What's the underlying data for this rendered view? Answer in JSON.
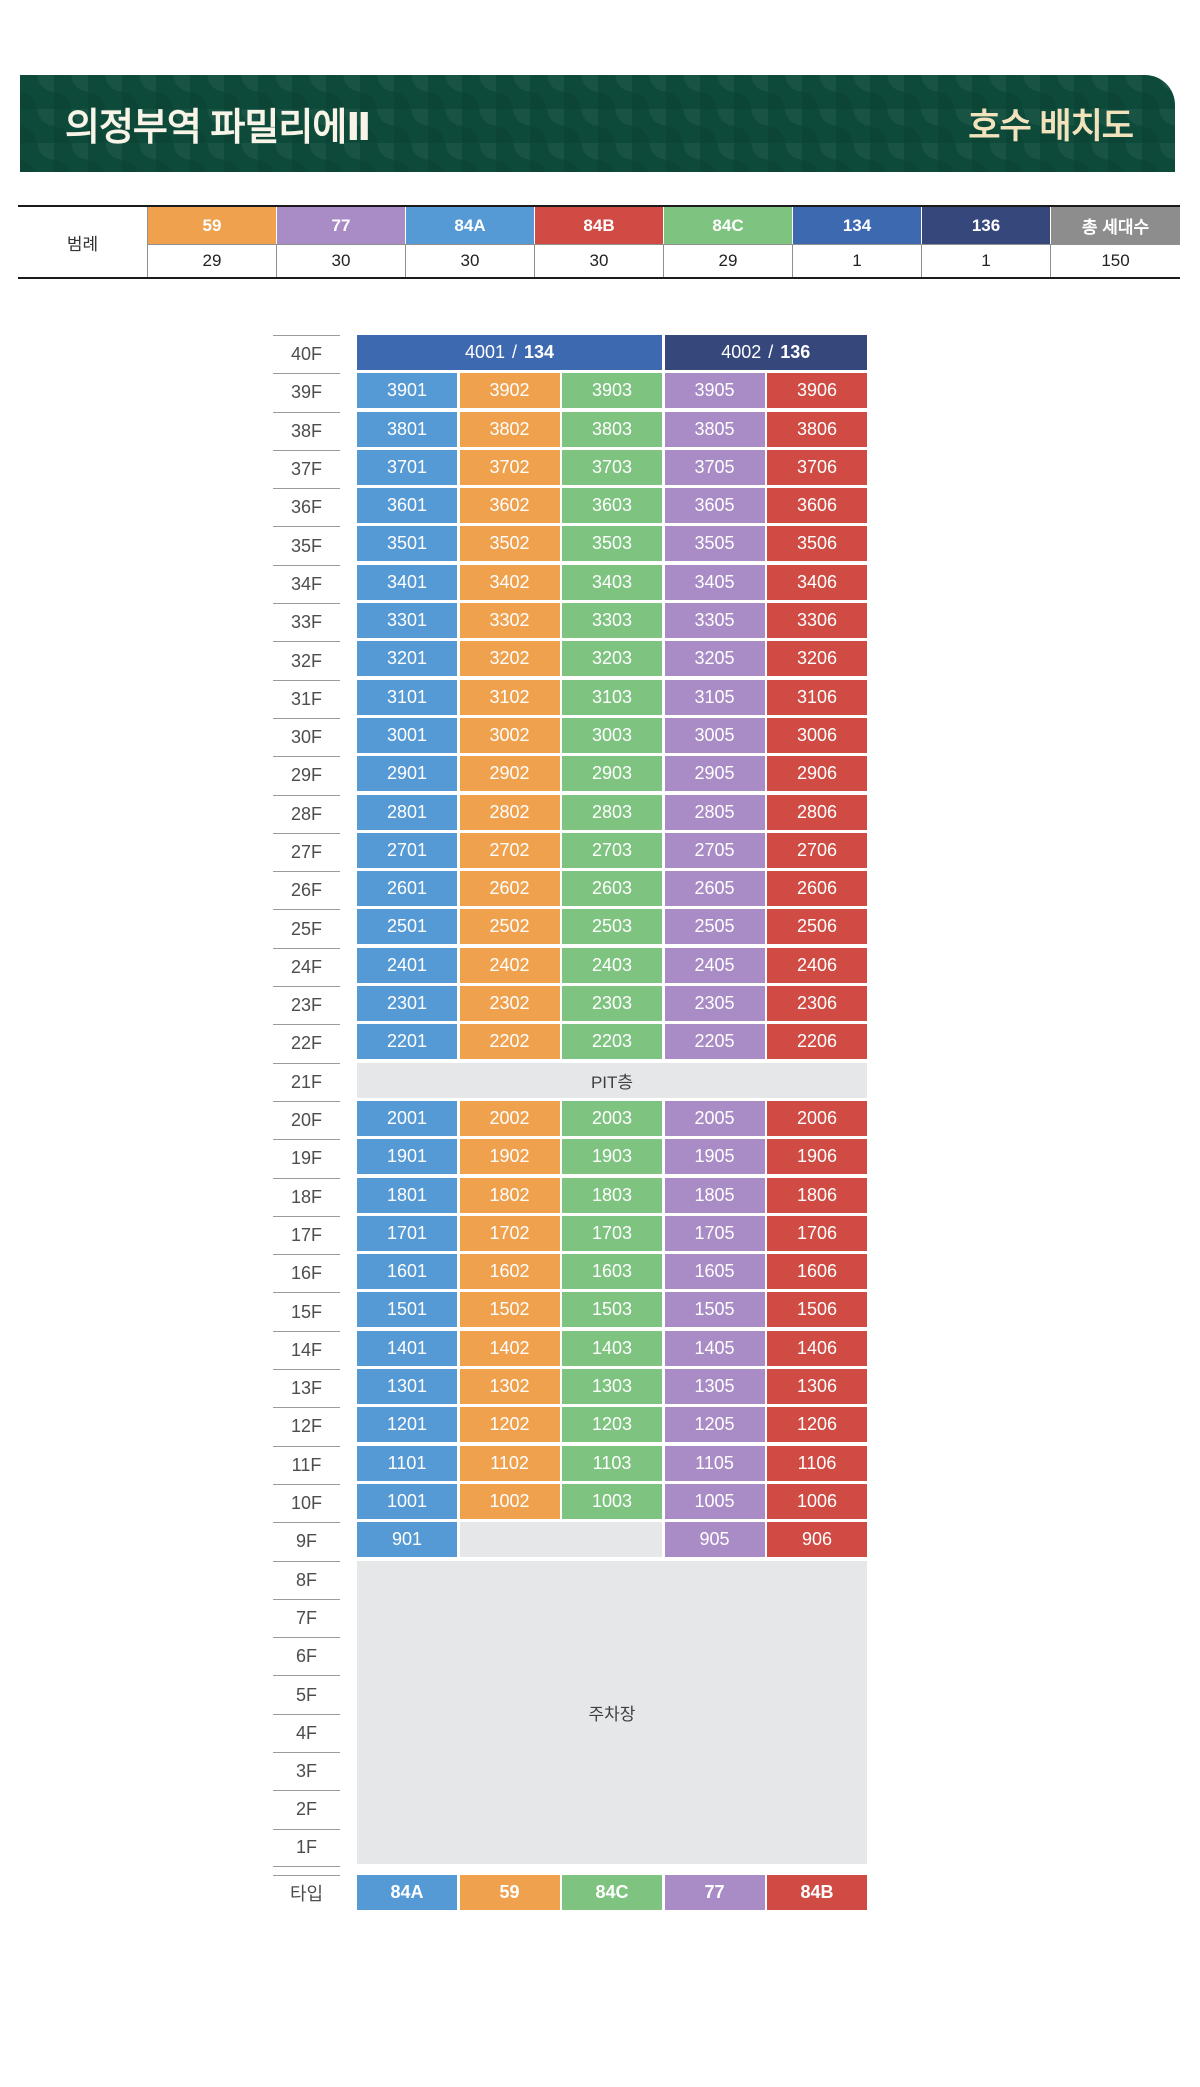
{
  "header": {
    "title": "의정부역 파밀리에Ⅱ",
    "subtitle": "호수 배치도"
  },
  "legend": {
    "label": "범례",
    "items": [
      {
        "type": "59",
        "count": "29"
      },
      {
        "type": "77",
        "count": "30"
      },
      {
        "type": "84A",
        "count": "30"
      },
      {
        "type": "84B",
        "count": "30"
      },
      {
        "type": "84C",
        "count": "29"
      },
      {
        "type": "134",
        "count": "1"
      },
      {
        "type": "136",
        "count": "1"
      },
      {
        "type": "총 세대수",
        "count": "150"
      }
    ]
  },
  "grid": {
    "colors": {
      "59": "#f0a14e",
      "77": "#a98bc6",
      "84A": "#569ad5",
      "84B": "#cf4b44",
      "84C": "#7ec480",
      "134": "#3c69b0",
      "136": "#36477c",
      "gray": "#e6e7e9"
    },
    "column_types": [
      "84A",
      "59",
      "84C",
      "77",
      "84B"
    ],
    "rows": [
      {
        "floor": "40F",
        "kind": "merged",
        "cells": [
          {
            "no": "4001",
            "type": "134",
            "span": 3
          },
          {
            "no": "4002",
            "type": "136",
            "span": 2
          }
        ]
      },
      {
        "floor": "39F",
        "kind": "units",
        "units": [
          "3901",
          "3902",
          "3903",
          "3905",
          "3906"
        ]
      },
      {
        "floor": "38F",
        "kind": "units",
        "units": [
          "3801",
          "3802",
          "3803",
          "3805",
          "3806"
        ]
      },
      {
        "floor": "37F",
        "kind": "units",
        "units": [
          "3701",
          "3702",
          "3703",
          "3705",
          "3706"
        ]
      },
      {
        "floor": "36F",
        "kind": "units",
        "units": [
          "3601",
          "3602",
          "3603",
          "3605",
          "3606"
        ]
      },
      {
        "floor": "35F",
        "kind": "units",
        "units": [
          "3501",
          "3502",
          "3503",
          "3505",
          "3506"
        ]
      },
      {
        "floor": "34F",
        "kind": "units",
        "units": [
          "3401",
          "3402",
          "3403",
          "3405",
          "3406"
        ]
      },
      {
        "floor": "33F",
        "kind": "units",
        "units": [
          "3301",
          "3302",
          "3303",
          "3305",
          "3306"
        ]
      },
      {
        "floor": "32F",
        "kind": "units",
        "units": [
          "3201",
          "3202",
          "3203",
          "3205",
          "3206"
        ]
      },
      {
        "floor": "31F",
        "kind": "units",
        "units": [
          "3101",
          "3102",
          "3103",
          "3105",
          "3106"
        ]
      },
      {
        "floor": "30F",
        "kind": "units",
        "units": [
          "3001",
          "3002",
          "3003",
          "3005",
          "3006"
        ]
      },
      {
        "floor": "29F",
        "kind": "units",
        "units": [
          "2901",
          "2902",
          "2903",
          "2905",
          "2906"
        ]
      },
      {
        "floor": "28F",
        "kind": "units",
        "units": [
          "2801",
          "2802",
          "2803",
          "2805",
          "2806"
        ]
      },
      {
        "floor": "27F",
        "kind": "units",
        "units": [
          "2701",
          "2702",
          "2703",
          "2705",
          "2706"
        ]
      },
      {
        "floor": "26F",
        "kind": "units",
        "units": [
          "2601",
          "2602",
          "2603",
          "2605",
          "2606"
        ]
      },
      {
        "floor": "25F",
        "kind": "units",
        "units": [
          "2501",
          "2502",
          "2503",
          "2505",
          "2506"
        ]
      },
      {
        "floor": "24F",
        "kind": "units",
        "units": [
          "2401",
          "2402",
          "2403",
          "2405",
          "2406"
        ]
      },
      {
        "floor": "23F",
        "kind": "units",
        "units": [
          "2301",
          "2302",
          "2303",
          "2305",
          "2306"
        ]
      },
      {
        "floor": "22F",
        "kind": "units",
        "units": [
          "2201",
          "2202",
          "2203",
          "2205",
          "2206"
        ]
      },
      {
        "floor": "21F",
        "kind": "band",
        "text": "PIT층"
      },
      {
        "floor": "20F",
        "kind": "units",
        "units": [
          "2001",
          "2002",
          "2003",
          "2005",
          "2006"
        ]
      },
      {
        "floor": "19F",
        "kind": "units",
        "units": [
          "1901",
          "1902",
          "1903",
          "1905",
          "1906"
        ]
      },
      {
        "floor": "18F",
        "kind": "units",
        "units": [
          "1801",
          "1802",
          "1803",
          "1805",
          "1806"
        ]
      },
      {
        "floor": "17F",
        "kind": "units",
        "units": [
          "1701",
          "1702",
          "1703",
          "1705",
          "1706"
        ]
      },
      {
        "floor": "16F",
        "kind": "units",
        "units": [
          "1601",
          "1602",
          "1603",
          "1605",
          "1606"
        ]
      },
      {
        "floor": "15F",
        "kind": "units",
        "units": [
          "1501",
          "1502",
          "1503",
          "1505",
          "1506"
        ]
      },
      {
        "floor": "14F",
        "kind": "units",
        "units": [
          "1401",
          "1402",
          "1403",
          "1405",
          "1406"
        ]
      },
      {
        "floor": "13F",
        "kind": "units",
        "units": [
          "1301",
          "1302",
          "1303",
          "1305",
          "1306"
        ]
      },
      {
        "floor": "12F",
        "kind": "units",
        "units": [
          "1201",
          "1202",
          "1203",
          "1205",
          "1206"
        ]
      },
      {
        "floor": "11F",
        "kind": "units",
        "units": [
          "1101",
          "1102",
          "1103",
          "1105",
          "1106"
        ]
      },
      {
        "floor": "10F",
        "kind": "units",
        "units": [
          "1001",
          "1002",
          "1003",
          "1005",
          "1006"
        ]
      },
      {
        "floor": "9F",
        "kind": "units",
        "units": [
          "901",
          "",
          "",
          "905",
          "906"
        ]
      },
      {
        "kind": "parking",
        "floors": [
          "8F",
          "7F",
          "6F",
          "5F",
          "4F",
          "3F",
          "2F",
          "1F"
        ],
        "text": "주차장"
      },
      {
        "floor": "타입",
        "kind": "types",
        "units": [
          "84A",
          "59",
          "84C",
          "77",
          "84B"
        ]
      }
    ]
  }
}
